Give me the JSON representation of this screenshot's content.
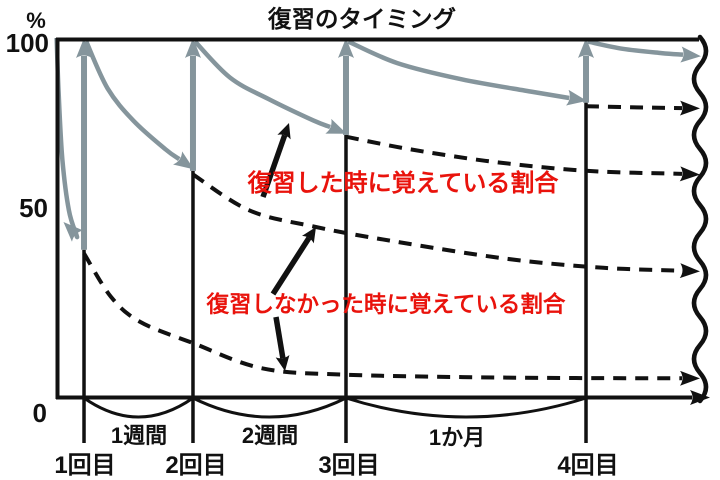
{
  "title": "復習のタイミング",
  "y_axis": {
    "unit": "%",
    "tick_top": "100",
    "tick_mid": "50",
    "tick_bottom": "0"
  },
  "x_axis": {
    "review_labels": [
      "1回目",
      "2回目",
      "3回目",
      "4回目"
    ],
    "interval_labels": [
      "1週間",
      "2週間",
      "1か月"
    ]
  },
  "annotations": {
    "reviewed_label": "復習した時に覚えている割合",
    "not_reviewed_label": "復習しなかった時に覚えている割合",
    "arrows": [
      {
        "from": [
          263,
          197
        ],
        "to": [
          289,
          123
        ]
      },
      {
        "from": [
          273,
          294
        ],
        "to": [
          316,
          227
        ]
      },
      {
        "from": [
          276,
          317
        ],
        "to": [
          285,
          371
        ]
      }
    ]
  },
  "colors": {
    "ink": "#111111",
    "gray_curve": "#85959C",
    "annotation_red": "#E9130C",
    "background": "#FFFFFF"
  },
  "chart_data": {
    "type": "line",
    "title": "復習のタイミング",
    "ylabel": "%",
    "ylim": [
      0,
      100
    ],
    "y_ticks": [
      0,
      50,
      100
    ],
    "x_note": "x is fraction of plot width; review intervals widen (1週間, 2週間, 1か月); right edge = continuation (wavy line)",
    "reviews": [
      {
        "label": "1回目",
        "x": 0.0435,
        "retention_at_review": 41
      },
      {
        "label": "2回目",
        "x": 0.2127,
        "retention_at_review": 63
      },
      {
        "label": "3回目",
        "x": 0.4503,
        "retention_at_review": 73
      },
      {
        "label": "4回目",
        "x": 0.823,
        "retention_at_review": 82
      }
    ],
    "series": [
      {
        "name": "initial-decay",
        "group": "reviewed",
        "style": "solid",
        "points": [
          [
            0.001,
            100
          ],
          [
            0.004,
            85
          ],
          [
            0.01,
            66
          ],
          [
            0.02,
            52
          ],
          [
            0.032,
            45
          ],
          [
            0.0435,
            41
          ]
        ]
      },
      {
        "name": "decay-after-review-1",
        "group": "reviewed",
        "style": "solid",
        "points": [
          [
            0.047,
            99
          ],
          [
            0.08,
            86
          ],
          [
            0.12,
            77
          ],
          [
            0.17,
            69
          ],
          [
            0.2127,
            63.5
          ]
        ]
      },
      {
        "name": "decay-after-review-2",
        "group": "reviewed",
        "style": "solid",
        "points": [
          [
            0.216,
            99
          ],
          [
            0.27,
            89
          ],
          [
            0.33,
            83
          ],
          [
            0.4,
            77
          ],
          [
            0.4503,
            73.5
          ]
        ]
      },
      {
        "name": "decay-after-review-3",
        "group": "reviewed",
        "style": "solid",
        "points": [
          [
            0.454,
            99
          ],
          [
            0.53,
            93
          ],
          [
            0.63,
            88.5
          ],
          [
            0.74,
            85
          ],
          [
            0.823,
            82.5
          ]
        ]
      },
      {
        "name": "decay-after-review-4",
        "group": "reviewed",
        "style": "solid",
        "points": [
          [
            0.826,
            99
          ],
          [
            0.88,
            97
          ],
          [
            0.94,
            95.8
          ],
          [
            1.0,
            95
          ]
        ]
      },
      {
        "name": "no-review-from-1",
        "group": "not_reviewed",
        "style": "dashed",
        "points": [
          [
            0.0435,
            40
          ],
          [
            0.085,
            28
          ],
          [
            0.13,
            21
          ],
          [
            0.2127,
            15
          ],
          [
            0.32,
            8
          ],
          [
            0.4503,
            6.2
          ],
          [
            0.7,
            5.4
          ],
          [
            1.0,
            5.2
          ]
        ]
      },
      {
        "name": "no-review-from-2",
        "group": "not_reviewed",
        "style": "dashed",
        "points": [
          [
            0.2127,
            62
          ],
          [
            0.3,
            52
          ],
          [
            0.4,
            47.5
          ],
          [
            0.52,
            43.5
          ],
          [
            0.7,
            38.5
          ],
          [
            0.85,
            36
          ],
          [
            1.0,
            35
          ]
        ]
      },
      {
        "name": "no-review-from-3",
        "group": "not_reviewed",
        "style": "dashed",
        "points": [
          [
            0.4503,
            72.5
          ],
          [
            0.55,
            69
          ],
          [
            0.68,
            65.5
          ],
          [
            0.823,
            63
          ],
          [
            1.0,
            62
          ]
        ]
      },
      {
        "name": "no-review-from-4",
        "group": "not_reviewed",
        "style": "dashed",
        "points": [
          [
            0.823,
            81
          ],
          [
            0.92,
            80.6
          ],
          [
            1.0,
            80.4
          ]
        ]
      }
    ]
  }
}
